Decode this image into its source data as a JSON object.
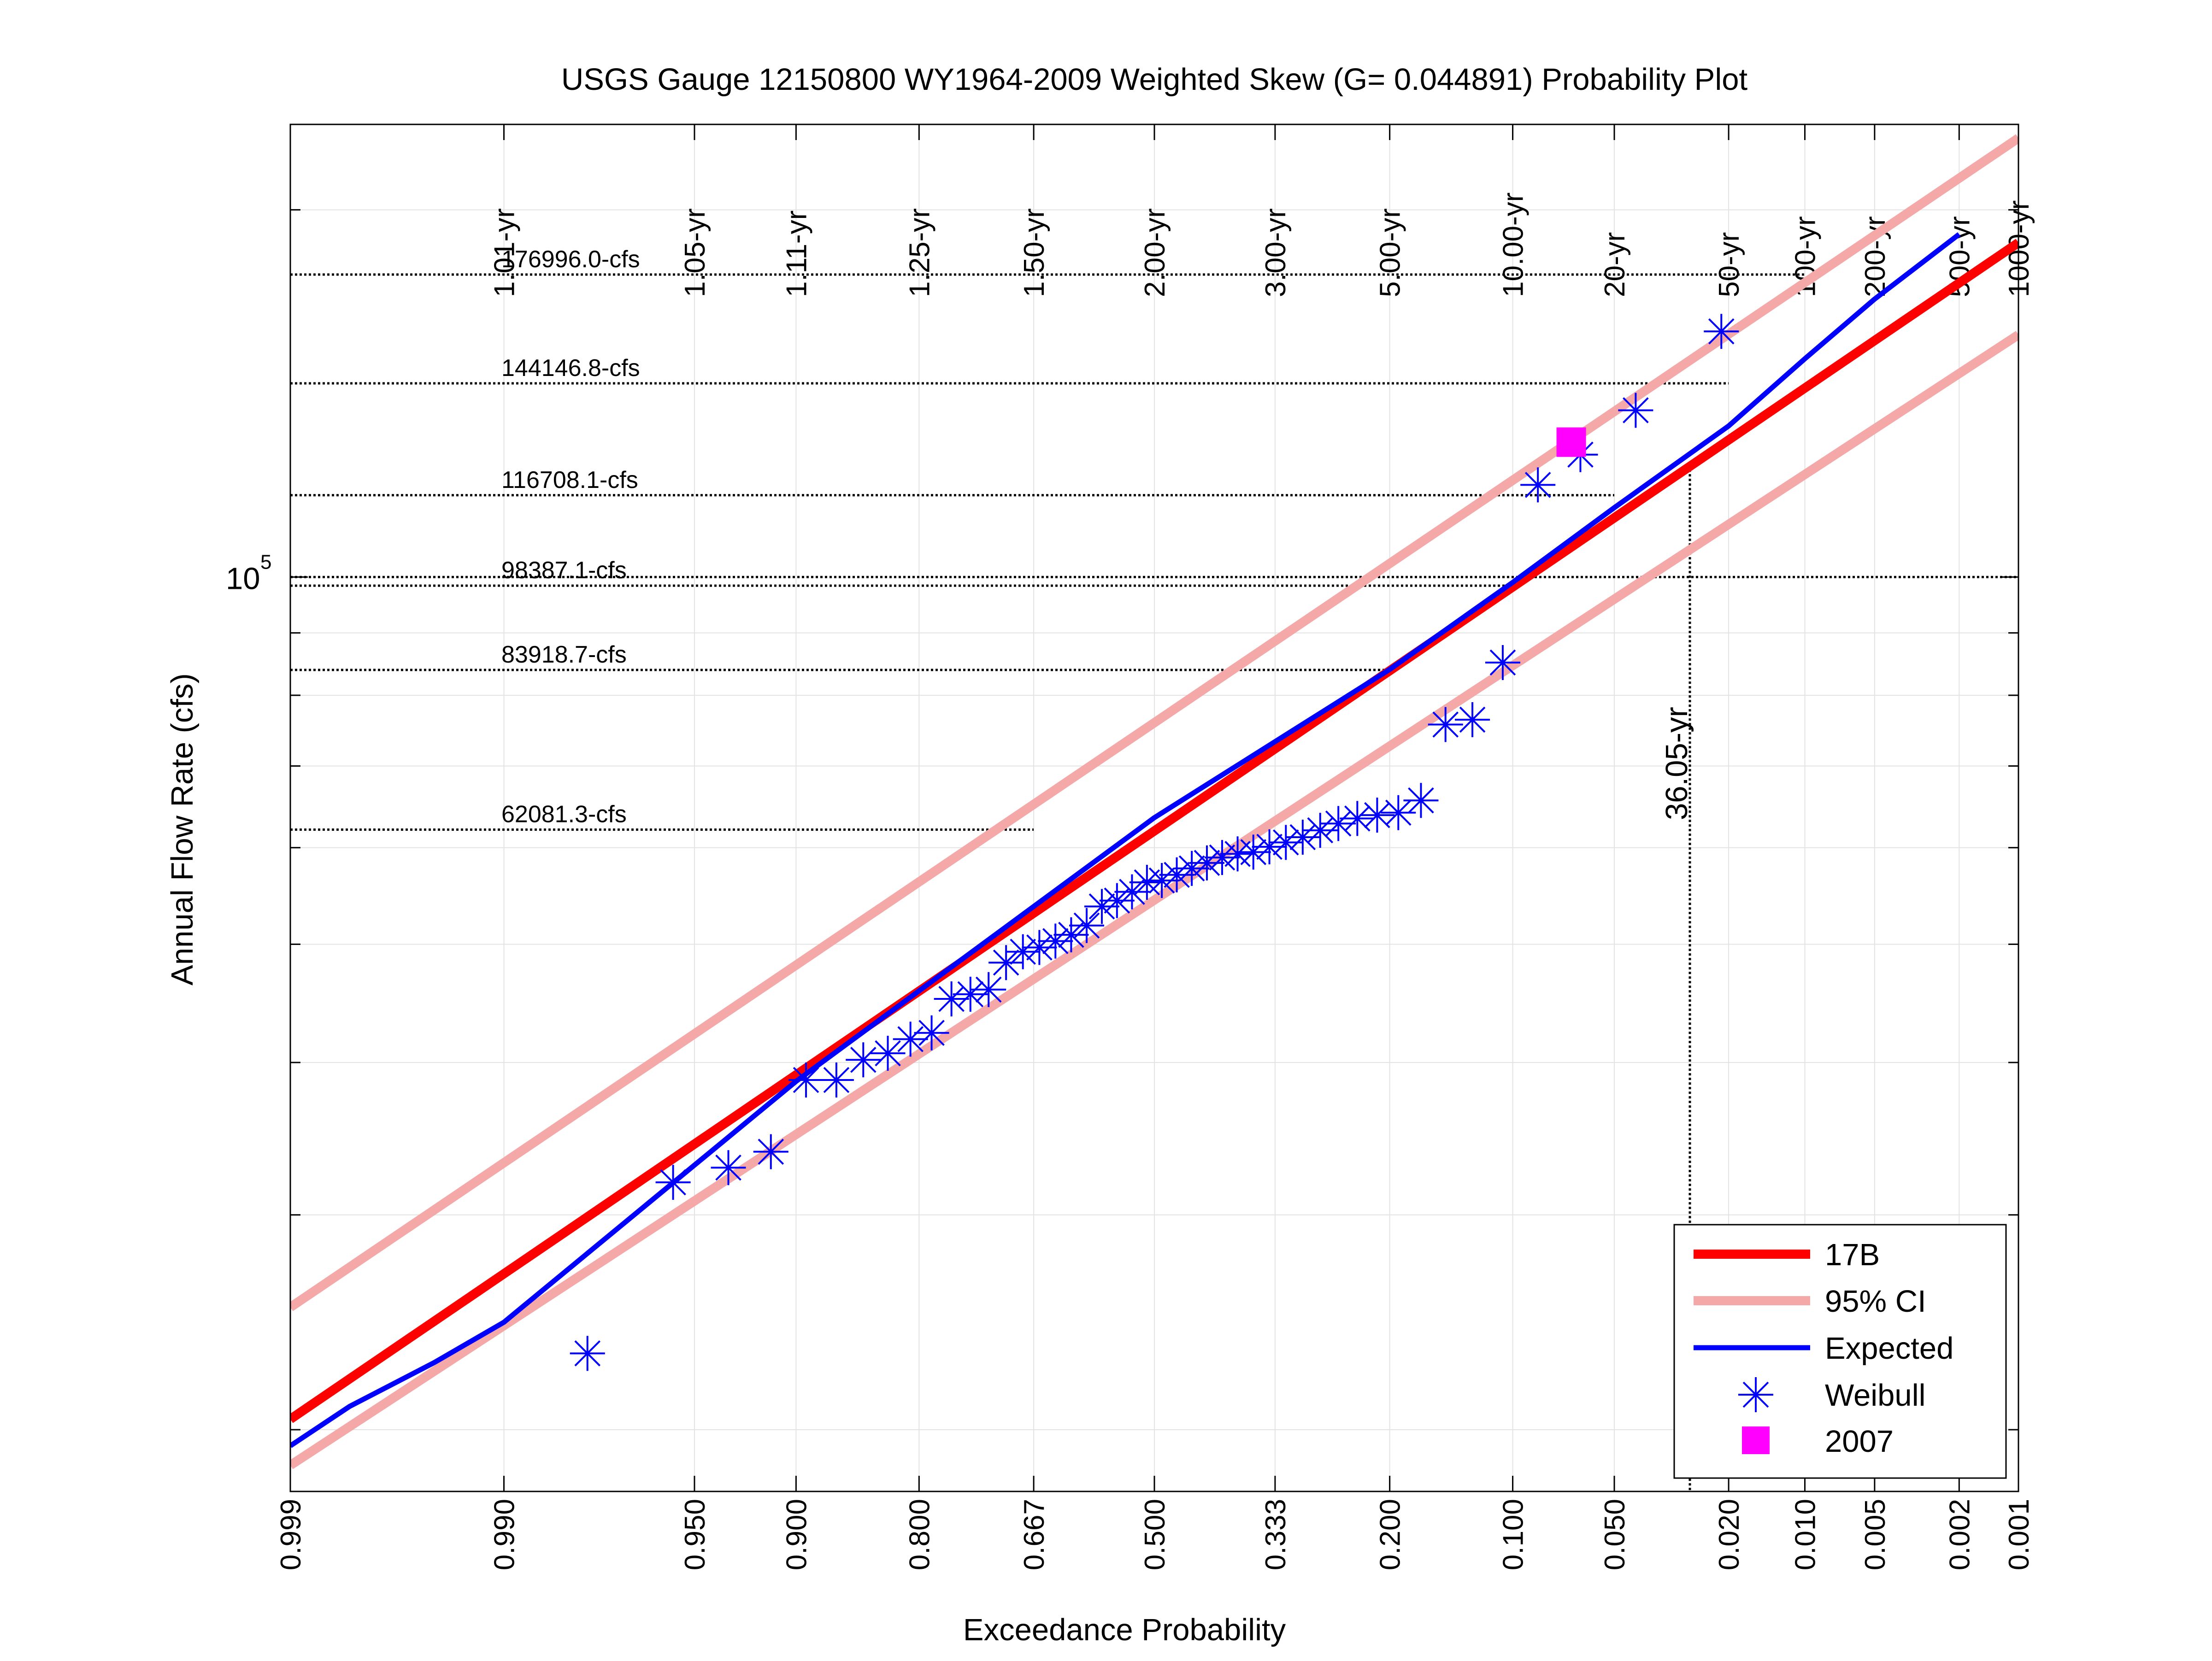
{
  "chart_data": {
    "type": "scatter",
    "title": "USGS Gauge 12150800 WY1964-2009 Weighted Skew (G= 0.044891) Probability Plot",
    "xlabel": "Exceedance Probability",
    "ylabel": "Annual Flow Rate (cfs)",
    "x_scale": "normal probability (reversed)",
    "y_scale": "log",
    "xlim": [
      0.999,
      0.001
    ],
    "ylim": [
      17800,
      235000
    ],
    "grid": true,
    "legend_position": "bottom-right",
    "x_ticks": [
      {
        "p": 0.999,
        "label": "0.999"
      },
      {
        "p": 0.99,
        "label": "0.990"
      },
      {
        "p": 0.95,
        "label": "0.950"
      },
      {
        "p": 0.9,
        "label": "0.900"
      },
      {
        "p": 0.8,
        "label": "0.800"
      },
      {
        "p": 0.667,
        "label": "0.667"
      },
      {
        "p": 0.5,
        "label": "0.500"
      },
      {
        "p": 0.333,
        "label": "0.333"
      },
      {
        "p": 0.2,
        "label": "0.200"
      },
      {
        "p": 0.1,
        "label": "0.100"
      },
      {
        "p": 0.05,
        "label": "0.050"
      },
      {
        "p": 0.02,
        "label": "0.020"
      },
      {
        "p": 0.01,
        "label": "0.010"
      },
      {
        "p": 0.005,
        "label": "0.005"
      },
      {
        "p": 0.002,
        "label": "0.002"
      },
      {
        "p": 0.001,
        "label": "0.001"
      }
    ],
    "y_tick": {
      "value": 100000,
      "base": "10",
      "exponent": "5"
    },
    "return_period_labels": [
      {
        "p": 0.99,
        "label": "1.01-yr"
      },
      {
        "p": 0.95,
        "label": "1.05-yr"
      },
      {
        "p": 0.9,
        "label": "1.11-yr"
      },
      {
        "p": 0.8,
        "label": "1.25-yr"
      },
      {
        "p": 0.667,
        "label": "1.50-yr"
      },
      {
        "p": 0.5,
        "label": "2.00-yr"
      },
      {
        "p": 0.333,
        "label": "3.00-yr"
      },
      {
        "p": 0.2,
        "label": "5.00-yr"
      },
      {
        "p": 0.1,
        "label": "10.00-yr"
      },
      {
        "p": 0.05,
        "label": "20-yr"
      },
      {
        "p": 0.02,
        "label": "50-yr"
      },
      {
        "p": 0.01,
        "label": "100-yr"
      },
      {
        "p": 0.005,
        "label": "200-yr"
      },
      {
        "p": 0.002,
        "label": "500-yr"
      },
      {
        "p": 0.001,
        "label": "1000-yr"
      }
    ],
    "flow_lines": [
      {
        "value": 176996.0,
        "p": 0.01,
        "label": "176996.0-cfs"
      },
      {
        "value": 144146.8,
        "p": 0.02,
        "label": "144146.8-cfs"
      },
      {
        "value": 116708.1,
        "p": 0.05,
        "label": "116708.1-cfs"
      },
      {
        "value": 98387.1,
        "p": 0.1,
        "label": "98387.1-cfs"
      },
      {
        "value": 83918.7,
        "p": 0.2,
        "label": "83918.7-cfs"
      },
      {
        "value": 62081.3,
        "p": 0.667,
        "label": "62081.3-cfs"
      }
    ],
    "event_line": {
      "p": 0.02774,
      "value": 122500,
      "label": "36.05-yr"
    },
    "series": [
      {
        "name": "17B",
        "color": "#ff0000",
        "points": [
          [
            0.999,
            20400
          ],
          [
            0.001,
            188000
          ]
        ]
      },
      {
        "name": "95% CI",
        "color": "#f4a8a8",
        "upper": [
          [
            0.999,
            25200
          ],
          [
            0.001,
            229000
          ]
        ],
        "lower": [
          [
            0.999,
            18700
          ],
          [
            0.001,
            158000
          ]
        ]
      },
      {
        "name": "Expected",
        "color": "#0000ff",
        "points": [
          [
            0.999,
            19400
          ],
          [
            0.998,
            20900
          ],
          [
            0.995,
            22700
          ],
          [
            0.99,
            24500
          ],
          [
            0.9,
            38600
          ],
          [
            0.5,
            63500
          ],
          [
            0.2,
            84000
          ],
          [
            0.1,
            99000
          ],
          [
            0.05,
            114000
          ],
          [
            0.02,
            133000
          ],
          [
            0.01,
            151000
          ],
          [
            0.005,
            169000
          ],
          [
            0.002,
            191000
          ]
        ]
      },
      {
        "name": "Weibull",
        "color": "#0000ff",
        "points": [
          [
            0.9787,
            23100
          ],
          [
            0.9574,
            31900
          ],
          [
            0.9362,
            32800
          ],
          [
            0.9149,
            33800
          ],
          [
            0.8936,
            38700
          ],
          [
            0.8723,
            38700
          ],
          [
            0.8511,
            40200
          ],
          [
            0.8298,
            40700
          ],
          [
            0.8085,
            41800
          ],
          [
            0.7872,
            42300
          ],
          [
            0.766,
            45100
          ],
          [
            0.7447,
            45500
          ],
          [
            0.7234,
            45900
          ],
          [
            0.7021,
            48300
          ],
          [
            0.6809,
            49300
          ],
          [
            0.6596,
            49700
          ],
          [
            0.6383,
            50300
          ],
          [
            0.617,
            50900
          ],
          [
            0.5957,
            51800
          ],
          [
            0.5745,
            53700
          ],
          [
            0.5532,
            54300
          ],
          [
            0.5319,
            55200
          ],
          [
            0.5106,
            56200
          ],
          [
            0.4894,
            56400
          ],
          [
            0.4681,
            57000
          ],
          [
            0.4468,
            57700
          ],
          [
            0.4255,
            58300
          ],
          [
            0.4043,
            58900
          ],
          [
            0.383,
            59300
          ],
          [
            0.3617,
            59500
          ],
          [
            0.3404,
            60100
          ],
          [
            0.3191,
            60600
          ],
          [
            0.2979,
            61200
          ],
          [
            0.2766,
            62000
          ],
          [
            0.2553,
            62800
          ],
          [
            0.234,
            63400
          ],
          [
            0.2128,
            63800
          ],
          [
            0.1915,
            64100
          ],
          [
            0.1702,
            65600
          ],
          [
            0.1489,
            75700
          ],
          [
            0.1277,
            76400
          ],
          [
            0.1064,
            85100
          ],
          [
            0.0851,
            119000
          ],
          [
            0.0638,
            126000
          ],
          [
            0.0426,
            137000
          ],
          [
            0.0213,
            159000
          ]
        ]
      },
      {
        "name": "2007",
        "color": "#ff00ff",
        "points": [
          [
            0.068,
            129000
          ]
        ]
      }
    ]
  }
}
